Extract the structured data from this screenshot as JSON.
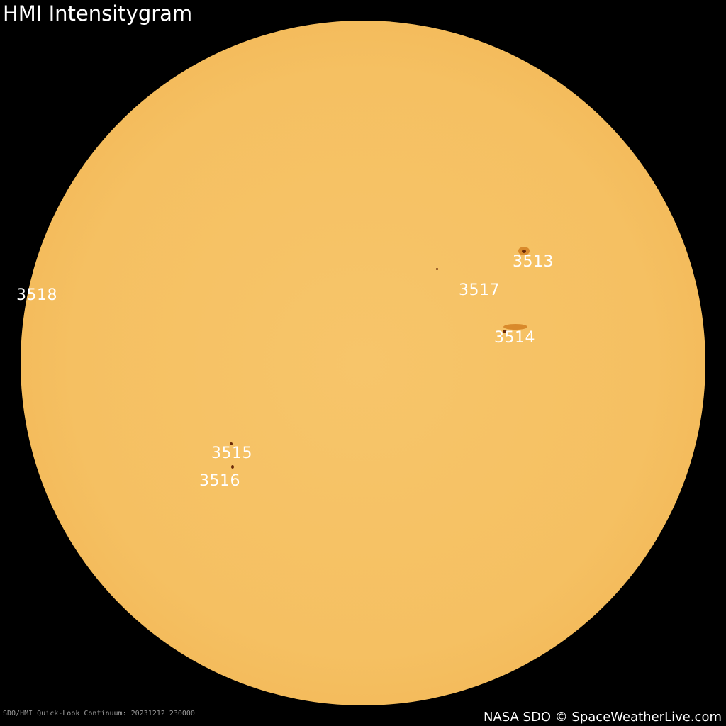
{
  "title": "HMI Intensitygram",
  "regions": [
    {
      "id": "3513"
    },
    {
      "id": "3514"
    },
    {
      "id": "3515"
    },
    {
      "id": "3516"
    },
    {
      "id": "3517"
    },
    {
      "id": "3518"
    }
  ],
  "footer": {
    "source": "SDO/HMI Quick-Look Continuum: 20231212_230000",
    "credit": "NASA SDO © SpaceWeatherLive.com"
  },
  "colors": {
    "sun": "#f5c062",
    "spot": "#6a2a08",
    "background": "#000000"
  }
}
